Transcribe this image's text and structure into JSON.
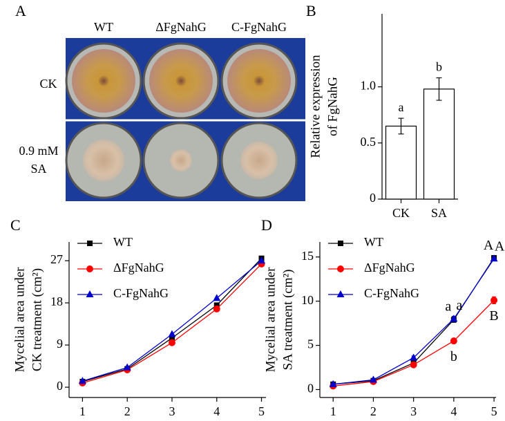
{
  "photo_panel": {
    "panel": "A",
    "columns": [
      "WT",
      "ΔFgNahG",
      "C-FgNahG"
    ],
    "rows": [
      "CK",
      "0.9 mM SA"
    ]
  },
  "chart_data": [
    {
      "type": "bar",
      "panel": "B",
      "ylabel": [
        "Relative expression",
        "of FgNahG"
      ],
      "categories": [
        "CK",
        "SA"
      ],
      "values": [
        0.65,
        0.98
      ],
      "errors": [
        0.07,
        0.1
      ],
      "letters": [
        "a",
        "b"
      ],
      "color": "#ffffff",
      "ylim": [
        0,
        1.65
      ],
      "yticks": [
        0,
        0.5,
        {
          "value": 1,
          "label": "1.0"
        }
      ]
    },
    {
      "type": "line",
      "panel": "C",
      "ylabel": [
        "Mycelial area under",
        "CK treatment (cm²)"
      ],
      "x": [
        1,
        2,
        3,
        4,
        5
      ],
      "xlim": [
        0.7,
        5.1
      ],
      "xticks": [
        1,
        2,
        3,
        4,
        5
      ],
      "ylim": [
        -2.2,
        31
      ],
      "yticks": [
        0,
        9,
        18,
        27
      ],
      "legend": "upper left",
      "series": [
        {
          "name": "WT",
          "color": "#000000",
          "marker": "square",
          "values": [
            1.2,
            3.9,
            10.5,
            17.5,
            27.5
          ]
        },
        {
          "name": "ΔFgNahG",
          "color": "#ff0000",
          "marker": "circle",
          "values": [
            0.9,
            3.7,
            9.5,
            16.7,
            26.3
          ]
        },
        {
          "name": "C-FgNahG",
          "color": "#0000cc",
          "marker": "triangle",
          "values": [
            1.3,
            4.2,
            11.3,
            19,
            27
          ]
        }
      ]
    },
    {
      "type": "line",
      "panel": "D",
      "ylabel": [
        "Mycelial area under",
        "SA treatment (cm²)"
      ],
      "x": [
        1,
        2,
        3,
        4,
        5
      ],
      "xlim": [
        0.67,
        5.05
      ],
      "xticks": [
        1,
        2,
        3,
        4,
        5
      ],
      "ylim": [
        -0.9,
        16.7
      ],
      "yticks": [
        0,
        5,
        10,
        15
      ],
      "legend": "upper left",
      "series": [
        {
          "name": "WT",
          "color": "#000000",
          "marker": "square",
          "values": [
            0.6,
            1.0,
            3.0,
            7.9,
            14.9
          ],
          "errors": [
            0.1,
            0.1,
            0.2,
            0.3,
            0.2
          ],
          "letters": [
            null,
            null,
            null,
            "a",
            "A"
          ],
          "letter_position": "above-left"
        },
        {
          "name": "ΔFgNahG",
          "color": "#ff0000",
          "marker": "circle",
          "values": [
            0.4,
            0.9,
            2.8,
            5.5,
            10.1
          ],
          "errors": [
            0.05,
            0.1,
            0.15,
            0.2,
            0.4
          ],
          "letters": [
            null,
            null,
            null,
            "b",
            "B"
          ],
          "letter_position": "below"
        },
        {
          "name": "C-FgNahG",
          "color": "#0000cc",
          "marker": "triangle",
          "values": [
            0.6,
            1.1,
            3.6,
            8.0,
            14.8
          ],
          "errors": [
            0.1,
            0.1,
            0.2,
            0.3,
            0.2
          ],
          "letters": [
            null,
            null,
            null,
            "a",
            "A"
          ],
          "letter_position": "above-right"
        }
      ]
    }
  ]
}
